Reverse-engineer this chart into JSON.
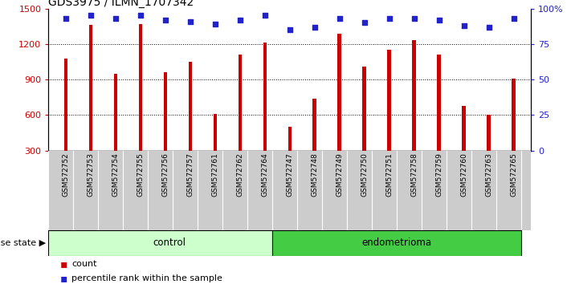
{
  "title": "GDS3975 / ILMN_1707342",
  "samples": [
    "GSM572752",
    "GSM572753",
    "GSM572754",
    "GSM572755",
    "GSM572756",
    "GSM572757",
    "GSM572761",
    "GSM572762",
    "GSM572764",
    "GSM572747",
    "GSM572748",
    "GSM572749",
    "GSM572750",
    "GSM572751",
    "GSM572758",
    "GSM572759",
    "GSM572760",
    "GSM572763",
    "GSM572765"
  ],
  "bar_values": [
    1080,
    1360,
    950,
    1370,
    960,
    1050,
    610,
    1110,
    1210,
    500,
    740,
    1290,
    1010,
    1150,
    1230,
    1110,
    680,
    600,
    910
  ],
  "dot_values_pct": [
    93,
    95,
    93,
    95,
    92,
    91,
    89,
    92,
    95,
    85,
    87,
    93,
    90,
    93,
    93,
    92,
    88,
    87,
    93
  ],
  "n_control": 9,
  "n_endometrioma": 10,
  "bar_color": "#cc0000",
  "dot_color": "#2222cc",
  "ylim_left": [
    300,
    1500
  ],
  "ylim_right": [
    0,
    100
  ],
  "yticks_left": [
    300,
    600,
    900,
    1200,
    1500
  ],
  "yticks_right": [
    0,
    25,
    50,
    75,
    100
  ],
  "grid_values": [
    600,
    900,
    1200
  ],
  "control_color": "#ccffcc",
  "endometrioma_color": "#44cc44",
  "xlabel_area_color": "#cccccc",
  "legend_count_label": "count",
  "legend_pct_label": "percentile rank within the sample",
  "disease_state_label": "disease state",
  "control_label": "control",
  "endometrioma_label": "endometrioma"
}
